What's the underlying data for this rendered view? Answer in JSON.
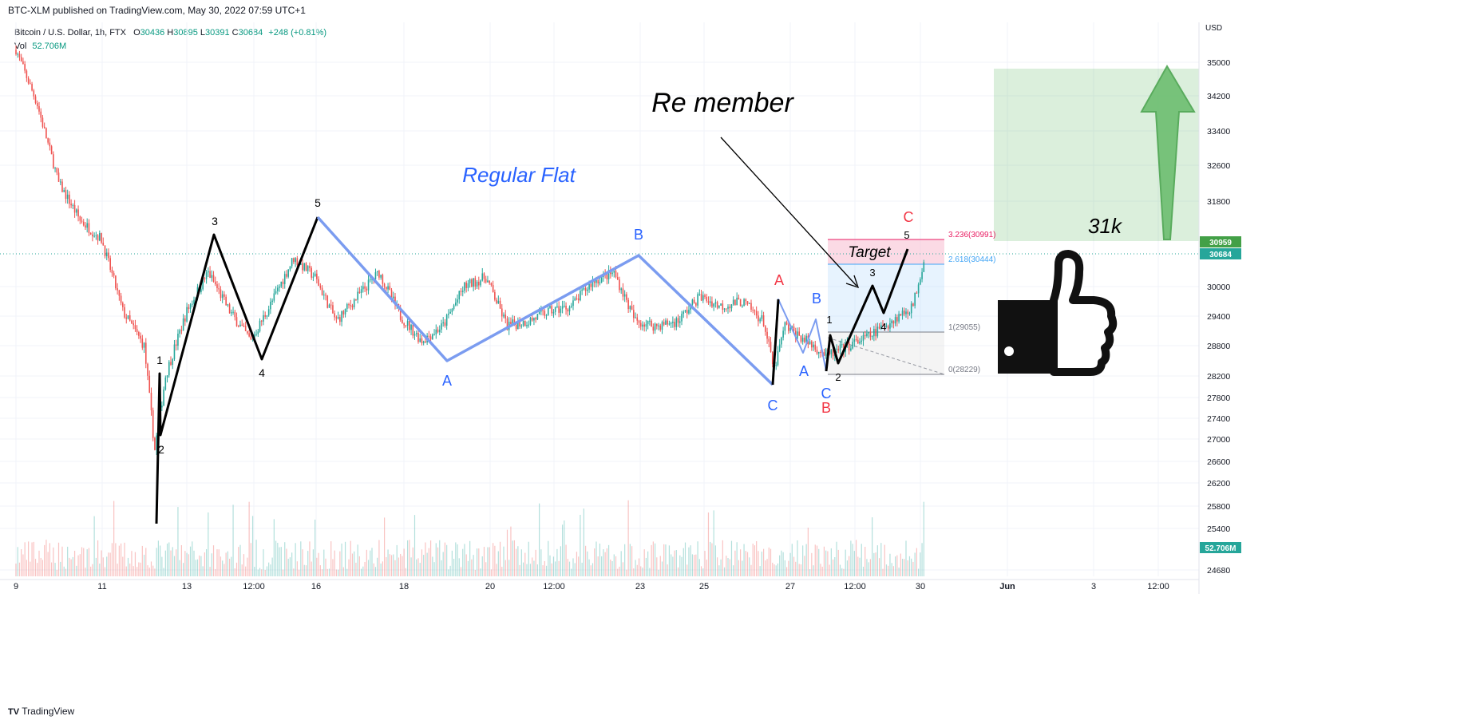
{
  "header": {
    "publish_line": "BTC-XLM published on TradingView.com, May 30, 2022 07:59 UTC+1"
  },
  "legend": {
    "symbol": "Bitcoin / U.S. Dollar, 1h, FTX",
    "o_label": "O",
    "o_value": "30436",
    "h_label": "H",
    "h_value": "30895",
    "l_label": "L",
    "l_value": "30391",
    "c_label": "C",
    "c_value": "30684",
    "change": "+248 (+0.81%)",
    "vol_label": "Vol",
    "vol_value": "52.706M"
  },
  "footer": {
    "brand": "TradingView"
  },
  "colors": {
    "up": "#26a69a",
    "down": "#ef5350",
    "blue_wave": "#2962ff",
    "red_wave": "#f23645",
    "target_zone": "#4caf50",
    "fib_pink": "#e91e63",
    "fib_blue": "#42a5f5"
  },
  "chart_data": {
    "type": "line",
    "title": "",
    "currency": "USD",
    "y_ticks": [
      35000,
      34200,
      33400,
      32600,
      31800,
      30000,
      29400,
      28800,
      28200,
      27800,
      27400,
      27000,
      26600,
      26200,
      25800,
      25400,
      24680
    ],
    "x_ticks": [
      "9",
      "11",
      "13",
      "12:00",
      "16",
      "18",
      "20",
      "12:00",
      "23",
      "25",
      "27",
      "12:00",
      "30",
      "Jun",
      "3",
      "12:00"
    ],
    "price_badges": [
      {
        "label": "30959",
        "value": 30959,
        "kind": "target"
      },
      {
        "label": "30684",
        "value": 30684,
        "kind": "last"
      },
      {
        "label": "52.706M",
        "kind": "volume"
      }
    ],
    "series": [
      {
        "name": "",
        "approx_close_path": [
          {
            "x": "May 9 00:00",
            "y": 35300
          },
          {
            "x": "May 9 12:00",
            "y": 34000
          },
          {
            "x": "May 10 00:00",
            "y": 32200
          },
          {
            "x": "May 10 12:00",
            "y": 31400
          },
          {
            "x": "May 11 00:00",
            "y": 31000
          },
          {
            "x": "May 11 12:00",
            "y": 29500
          },
          {
            "x": "May 12 00:00",
            "y": 28800
          },
          {
            "x": "May 12 06:00",
            "y": 26800
          },
          {
            "x": "May 12 12:00",
            "y": 28200
          },
          {
            "x": "May 13 00:00",
            "y": 29500
          },
          {
            "x": "May 13 12:00",
            "y": 30300
          },
          {
            "x": "May 14 00:00",
            "y": 29500
          },
          {
            "x": "May 14 12:00",
            "y": 28900
          },
          {
            "x": "May 15 00:00",
            "y": 29700
          },
          {
            "x": "May 15 12:00",
            "y": 30600
          },
          {
            "x": "May 16 00:00",
            "y": 30200
          },
          {
            "x": "May 16 12:00",
            "y": 29300
          },
          {
            "x": "May 17 00:00",
            "y": 29800
          },
          {
            "x": "May 17 12:00",
            "y": 30300
          },
          {
            "x": "May 18 00:00",
            "y": 29400
          },
          {
            "x": "May 18 12:00",
            "y": 28900
          },
          {
            "x": "May 19 00:00",
            "y": 29200
          },
          {
            "x": "May 19 12:00",
            "y": 30000
          },
          {
            "x": "May 20 00:00",
            "y": 30200
          },
          {
            "x": "May 20 12:00",
            "y": 29200
          },
          {
            "x": "May 21 00:00",
            "y": 29300
          },
          {
            "x": "May 21 12:00",
            "y": 29500
          },
          {
            "x": "May 22 00:00",
            "y": 29600
          },
          {
            "x": "May 22 12:00",
            "y": 30100
          },
          {
            "x": "May 23 00:00",
            "y": 30300
          },
          {
            "x": "May 23 12:00",
            "y": 29300
          },
          {
            "x": "May 24 00:00",
            "y": 29200
          },
          {
            "x": "May 24 12:00",
            "y": 29300
          },
          {
            "x": "May 25 00:00",
            "y": 29800
          },
          {
            "x": "May 25 12:00",
            "y": 29600
          },
          {
            "x": "May 26 00:00",
            "y": 29700
          },
          {
            "x": "May 26 12:00",
            "y": 29300
          },
          {
            "x": "May 26 18:00",
            "y": 28300
          },
          {
            "x": "May 27 00:00",
            "y": 29200
          },
          {
            "x": "May 27 12:00",
            "y": 28900
          },
          {
            "x": "May 28 00:00",
            "y": 28600
          },
          {
            "x": "May 28 12:00",
            "y": 28800
          },
          {
            "x": "May 29 00:00",
            "y": 29000
          },
          {
            "x": "May 29 12:00",
            "y": 29300
          },
          {
            "x": "May 30 00:00",
            "y": 29600
          },
          {
            "x": "May 30 07:00",
            "y": 30684
          }
        ]
      }
    ],
    "fib_levels": [
      {
        "label": "3.236(30991)",
        "value": 30991
      },
      {
        "label": "2.618(30444)",
        "value": 30444
      },
      {
        "label": "1(29055)",
        "value": 29055
      },
      {
        "label": "0(28229)",
        "value": 28229
      }
    ],
    "annotations": {
      "regular_flat": "Regular Flat",
      "remember": "Re member",
      "target": "Target",
      "k31": "31k",
      "impulse_labels": [
        "1",
        "2",
        "3",
        "4",
        "5"
      ],
      "wave_a": "A",
      "wave_b": "B",
      "wave_c": "C",
      "small_1": "1",
      "small_2": "2",
      "small_3": "3",
      "small_4": "4",
      "small_5": "5"
    }
  }
}
